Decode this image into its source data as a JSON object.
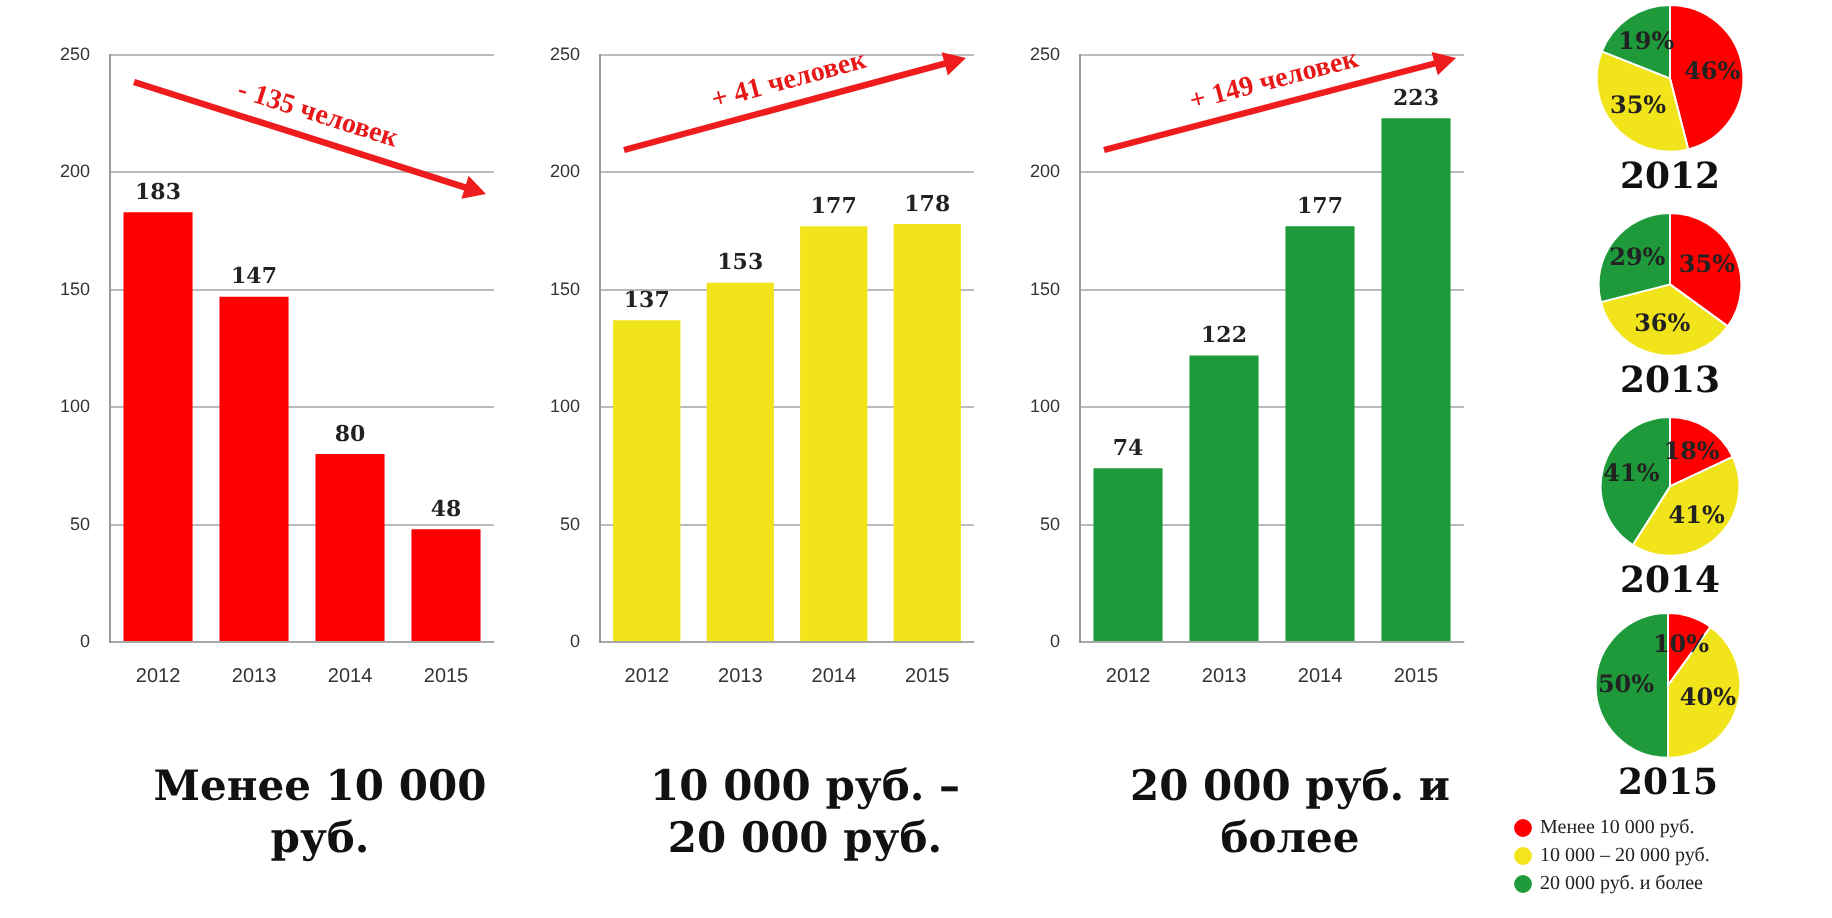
{
  "chart_data": [
    {
      "type": "bar",
      "xlabel": "Менее 10 000 руб.",
      "categories": [
        "2012",
        "2013",
        "2014",
        "2015"
      ],
      "values": [
        183,
        147,
        80,
        48
      ],
      "color": "#ff0000",
      "ylim": [
        0,
        250
      ],
      "yticks": [
        0,
        50,
        100,
        150,
        200,
        250
      ],
      "grid": "y",
      "data_labels": true,
      "annotations": [
        "- 135 человек"
      ]
    },
    {
      "type": "bar",
      "xlabel": "10 000 руб. – 20 000 руб.",
      "categories": [
        "2012",
        "2013",
        "2014",
        "2015"
      ],
      "values": [
        137,
        153,
        177,
        178
      ],
      "color": "#f2e41a",
      "ylim": [
        0,
        250
      ],
      "yticks": [
        0,
        50,
        100,
        150,
        200,
        250
      ],
      "grid": "y",
      "data_labels": true,
      "annotations": [
        "+ 41 человек"
      ]
    },
    {
      "type": "bar",
      "xlabel": "20 000 руб. и более",
      "categories": [
        "2012",
        "2013",
        "2014",
        "2015"
      ],
      "values": [
        74,
        122,
        177,
        223
      ],
      "color": "#1e9a3a",
      "ylim": [
        0,
        250
      ],
      "yticks": [
        0,
        50,
        100,
        150,
        200,
        250
      ],
      "grid": "y",
      "data_labels": true,
      "annotations": [
        "+ 149 человек"
      ]
    },
    {
      "type": "pie",
      "title": "2012",
      "categories": [
        null,
        null,
        null
      ],
      "values": [
        46,
        35,
        19
      ],
      "colors": [
        "#ff0000",
        "#f2e41a",
        "#1e9a3a"
      ],
      "value_labels": [
        "46%",
        "35%",
        "19%"
      ]
    },
    {
      "type": "pie",
      "title": "2013",
      "categories": [
        null,
        null,
        null
      ],
      "values": [
        35,
        36,
        29
      ],
      "colors": [
        "#ff0000",
        "#f2e41a",
        "#1e9a3a"
      ],
      "value_labels": [
        "35%",
        "36%",
        "29%"
      ]
    },
    {
      "type": "pie",
      "title": "2014",
      "categories": [
        null,
        null,
        null
      ],
      "values": [
        18,
        41,
        41
      ],
      "colors": [
        "#ff0000",
        "#f2e41a",
        "#1e9a3a"
      ],
      "value_labels": [
        "18%",
        "41%",
        "41%"
      ]
    },
    {
      "type": "pie",
      "title": "2015",
      "categories": [
        "Менее 10 000 руб.",
        "10 000 – 20 000 руб.",
        "20 000 руб. и более"
      ],
      "values": [
        10,
        40,
        50
      ],
      "colors": [
        "#ff0000",
        "#f2e41a",
        "#1e9a3a"
      ],
      "value_labels": [
        "10%",
        "40%",
        "50%"
      ],
      "legend": "bottom"
    }
  ]
}
